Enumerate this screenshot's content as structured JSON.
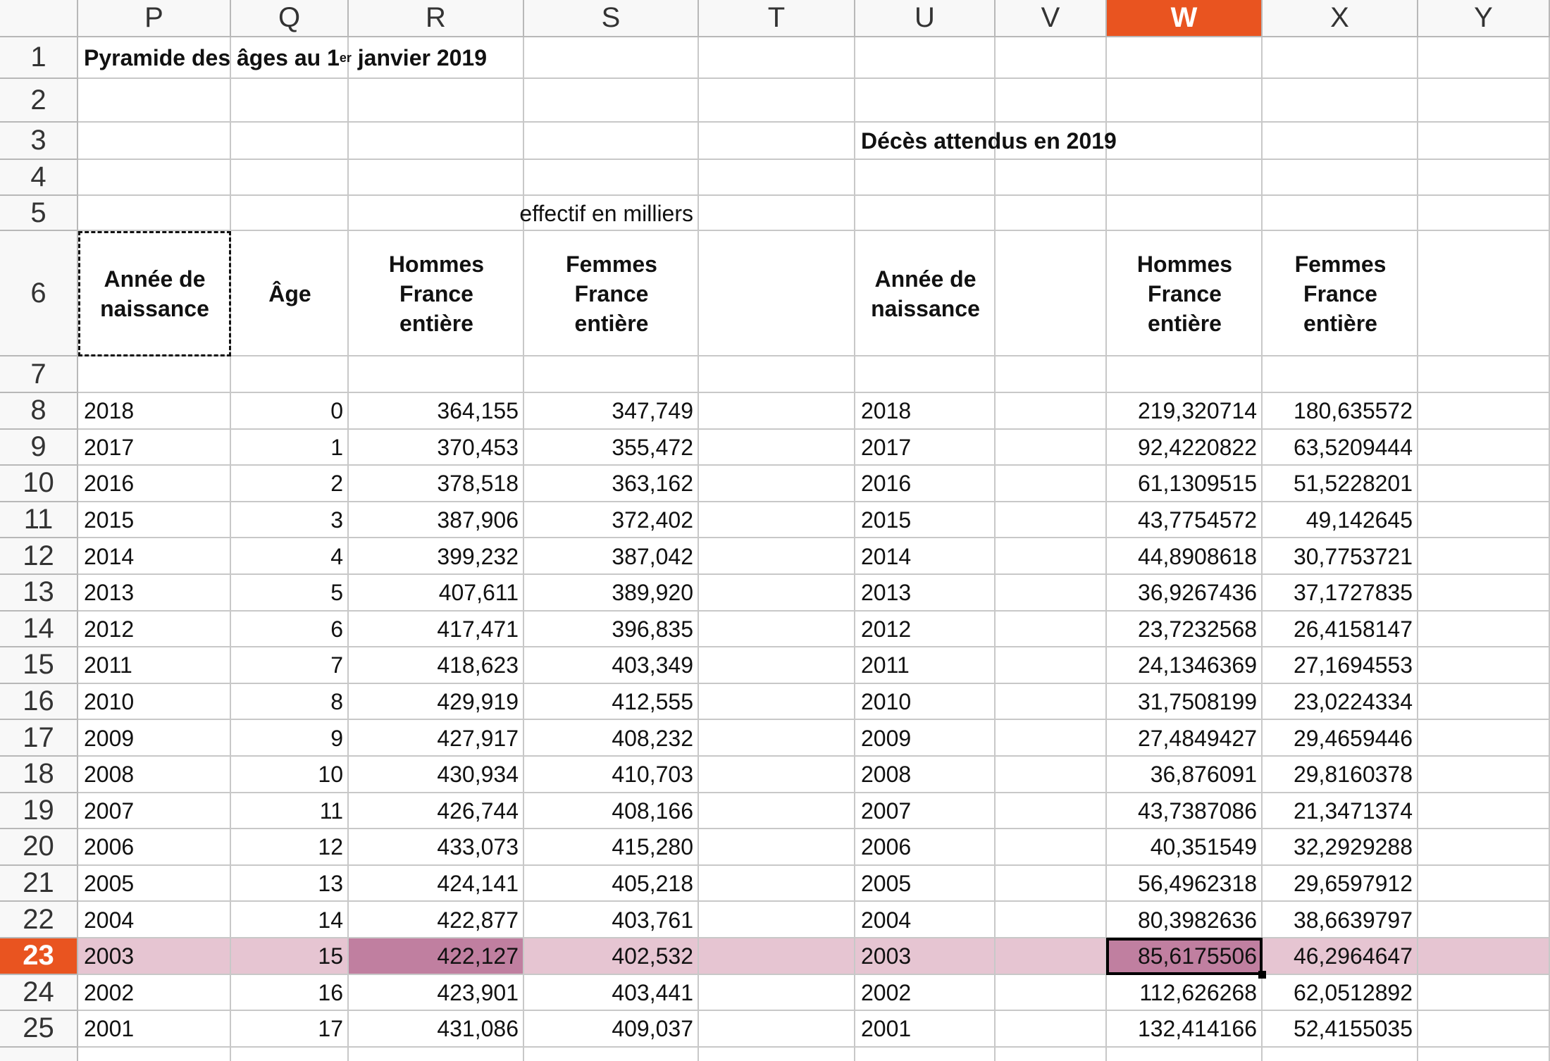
{
  "column_headers": [
    "P",
    "Q",
    "R",
    "S",
    "T",
    "U",
    "V",
    "W",
    "X",
    "Y"
  ],
  "row_headers": [
    "1",
    "2",
    "3",
    "4",
    "5",
    "6",
    "7",
    "8",
    "9",
    "10",
    "11",
    "12",
    "13",
    "14",
    "15",
    "16",
    "17",
    "18",
    "19",
    "20",
    "21",
    "22",
    "23",
    "24",
    "25"
  ],
  "title": {
    "text": "Pyramide des âges au 1",
    "superscript": "er",
    "rest": " janvier 2019"
  },
  "deaths_title": "Décès attendus en 2019",
  "unit_note": "effectif en milliers",
  "population_headers": [
    "Année de\nnaissance",
    "Âge",
    "Hommes\nFrance\nentière",
    "Femmes\nFrance\nentière"
  ],
  "deaths_headers": [
    "Année de\nnaissance",
    "Hommes\nFrance\nentière",
    "Femmes\nFrance\nentière"
  ],
  "rows": [
    [
      "2018",
      "0",
      "364,155",
      "347,749",
      "2018",
      "219,320714",
      "180,635572"
    ],
    [
      "2017",
      "1",
      "370,453",
      "355,472",
      "2017",
      "92,4220822",
      "63,5209444"
    ],
    [
      "2016",
      "2",
      "378,518",
      "363,162",
      "2016",
      "61,1309515",
      "51,5228201"
    ],
    [
      "2015",
      "3",
      "387,906",
      "372,402",
      "2015",
      "43,7754572",
      "49,142645"
    ],
    [
      "2014",
      "4",
      "399,232",
      "387,042",
      "2014",
      "44,8908618",
      "30,7753721"
    ],
    [
      "2013",
      "5",
      "407,611",
      "389,920",
      "2013",
      "36,9267436",
      "37,1727835"
    ],
    [
      "2012",
      "6",
      "417,471",
      "396,835",
      "2012",
      "23,7232568",
      "26,4158147"
    ],
    [
      "2011",
      "7",
      "418,623",
      "403,349",
      "2011",
      "24,1346369",
      "27,1694553"
    ],
    [
      "2010",
      "8",
      "429,919",
      "412,555",
      "2010",
      "31,7508199",
      "23,0224334"
    ],
    [
      "2009",
      "9",
      "427,917",
      "408,232",
      "2009",
      "27,4849427",
      "29,4659446"
    ],
    [
      "2008",
      "10",
      "430,934",
      "410,703",
      "2008",
      "36,876091",
      "29,8160378"
    ],
    [
      "2007",
      "11",
      "426,744",
      "408,166",
      "2007",
      "43,7387086",
      "21,3471374"
    ],
    [
      "2006",
      "12",
      "433,073",
      "415,280",
      "2006",
      "40,351549",
      "32,2929288"
    ],
    [
      "2005",
      "13",
      "424,141",
      "405,218",
      "2005",
      "56,4962318",
      "29,6597912"
    ],
    [
      "2004",
      "14",
      "422,877",
      "403,761",
      "2004",
      "80,3982636",
      "38,6639797"
    ],
    [
      "2003",
      "15",
      "422,127",
      "402,532",
      "2003",
      "85,6175506",
      "46,2964647"
    ],
    [
      "2002",
      "16",
      "423,901",
      "403,441",
      "2002",
      "112,626268",
      "62,0512892"
    ],
    [
      "2001",
      "17",
      "431,086",
      "409,037",
      "2001",
      "132,414166",
      "52,4155035"
    ]
  ]
}
